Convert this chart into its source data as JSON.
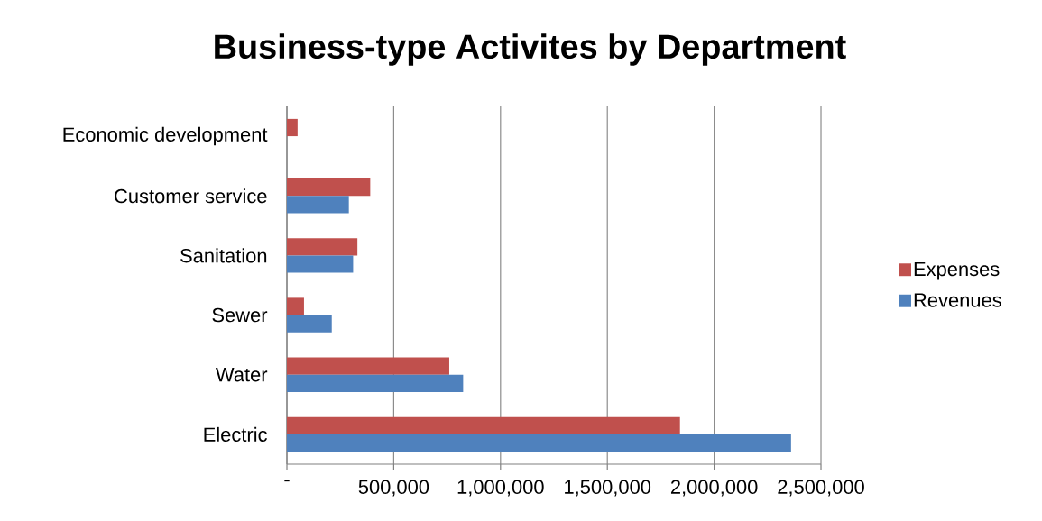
{
  "chart_data": {
    "type": "bar",
    "orientation": "horizontal",
    "title": "Business-type Activites by Department",
    "categories": [
      "Economic development",
      "Customer service",
      "Sanitation",
      "Sewer",
      "Water",
      "Electric"
    ],
    "series": [
      {
        "name": "Expenses",
        "color": "#c0504d",
        "values": [
          50000,
          390000,
          330000,
          80000,
          760000,
          1840000
        ]
      },
      {
        "name": "Revenues",
        "color": "#4f81bd",
        "values": [
          null,
          290000,
          310000,
          210000,
          825000,
          2360000
        ]
      }
    ],
    "xlim": [
      0,
      2500000
    ],
    "xticks": [
      {
        "value": 0,
        "label": "-"
      },
      {
        "value": 500000,
        "label": "500,000"
      },
      {
        "value": 1000000,
        "label": "1,000,000"
      },
      {
        "value": 1500000,
        "label": "1,500,000"
      },
      {
        "value": 2000000,
        "label": "2,000,000"
      },
      {
        "value": 2500000,
        "label": "2,500,000"
      }
    ],
    "grid": "x",
    "legend": "right"
  }
}
